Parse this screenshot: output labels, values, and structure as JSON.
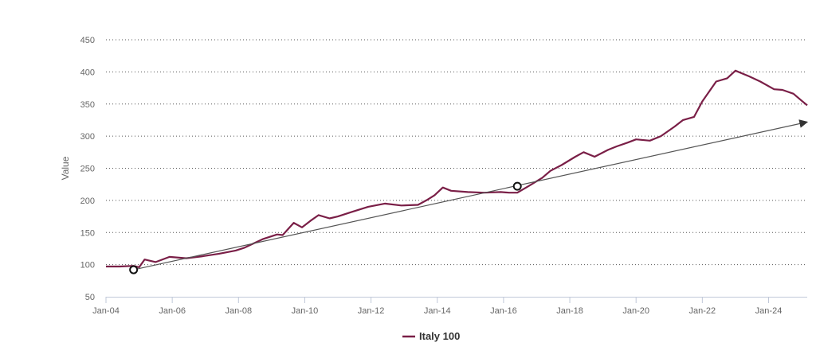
{
  "chart_data": {
    "type": "line",
    "ylabel": "Value",
    "ylim": [
      50,
      450
    ],
    "y_ticks": [
      50,
      100,
      150,
      200,
      250,
      300,
      350,
      400,
      450
    ],
    "y_tick_labels": [
      "50",
      "100",
      "150",
      "200",
      "250",
      "300",
      "350",
      "400",
      "450"
    ],
    "x_ticks": [
      "2004-01",
      "2006-01",
      "2008-01",
      "2010-01",
      "2012-01",
      "2014-01",
      "2016-01",
      "2018-01",
      "2020-01",
      "2022-01",
      "2024-01"
    ],
    "x_tick_labels": [
      "Jan-04",
      "Jan-06",
      "Jan-08",
      "Jan-10",
      "Jan-12",
      "Jan-14",
      "Jan-16",
      "Jan-18",
      "Jan-20",
      "Jan-22",
      "Jan-24"
    ],
    "xlim": [
      "2004-01",
      "2025-03"
    ],
    "grid": "horizontal dotted",
    "legend_position": "bottom-center",
    "series": [
      {
        "name": "Italy 100",
        "color": "#7a1f47",
        "x": [
          "2004-01",
          "2004-06",
          "2004-11",
          "2005-01",
          "2005-03",
          "2005-07",
          "2005-12",
          "2006-06",
          "2006-12",
          "2007-06",
          "2007-12",
          "2008-03",
          "2008-06",
          "2008-10",
          "2009-03",
          "2009-05",
          "2009-09",
          "2009-12",
          "2010-03",
          "2010-06",
          "2010-10",
          "2011-01",
          "2011-06",
          "2011-12",
          "2012-06",
          "2012-12",
          "2013-06",
          "2013-09",
          "2013-12",
          "2014-03",
          "2014-06",
          "2014-12",
          "2015-06",
          "2015-12",
          "2016-03",
          "2016-06",
          "2016-10",
          "2017-03",
          "2017-06",
          "2017-10",
          "2018-03",
          "2018-06",
          "2018-10",
          "2019-03",
          "2019-06",
          "2019-10",
          "2020-01",
          "2020-06",
          "2020-10",
          "2021-03",
          "2021-06",
          "2021-10",
          "2022-01",
          "2022-06",
          "2022-10",
          "2023-01",
          "2023-06",
          "2023-10",
          "2024-03",
          "2024-06",
          "2024-10",
          "2025-01",
          "2025-03"
        ],
        "values": [
          97,
          97,
          98,
          96,
          108,
          104,
          112,
          110,
          113,
          117,
          122,
          126,
          132,
          140,
          147,
          146,
          165,
          158,
          168,
          177,
          172,
          175,
          182,
          190,
          195,
          192,
          193,
          200,
          208,
          220,
          215,
          213,
          212,
          213,
          212,
          212,
          222,
          235,
          246,
          255,
          268,
          275,
          268,
          279,
          284,
          290,
          295,
          293,
          300,
          315,
          325,
          330,
          354,
          385,
          390,
          402,
          393,
          385,
          373,
          372,
          366,
          355,
          348
        ]
      }
    ],
    "annotations": [
      {
        "type": "trend-arrow",
        "color": "#555555",
        "points": [
          {
            "x": "2004-11",
            "y": 92
          },
          {
            "x": "2016-06",
            "y": 222
          }
        ],
        "arrow_end": {
          "x": "2025-03",
          "y": 322
        }
      }
    ]
  }
}
